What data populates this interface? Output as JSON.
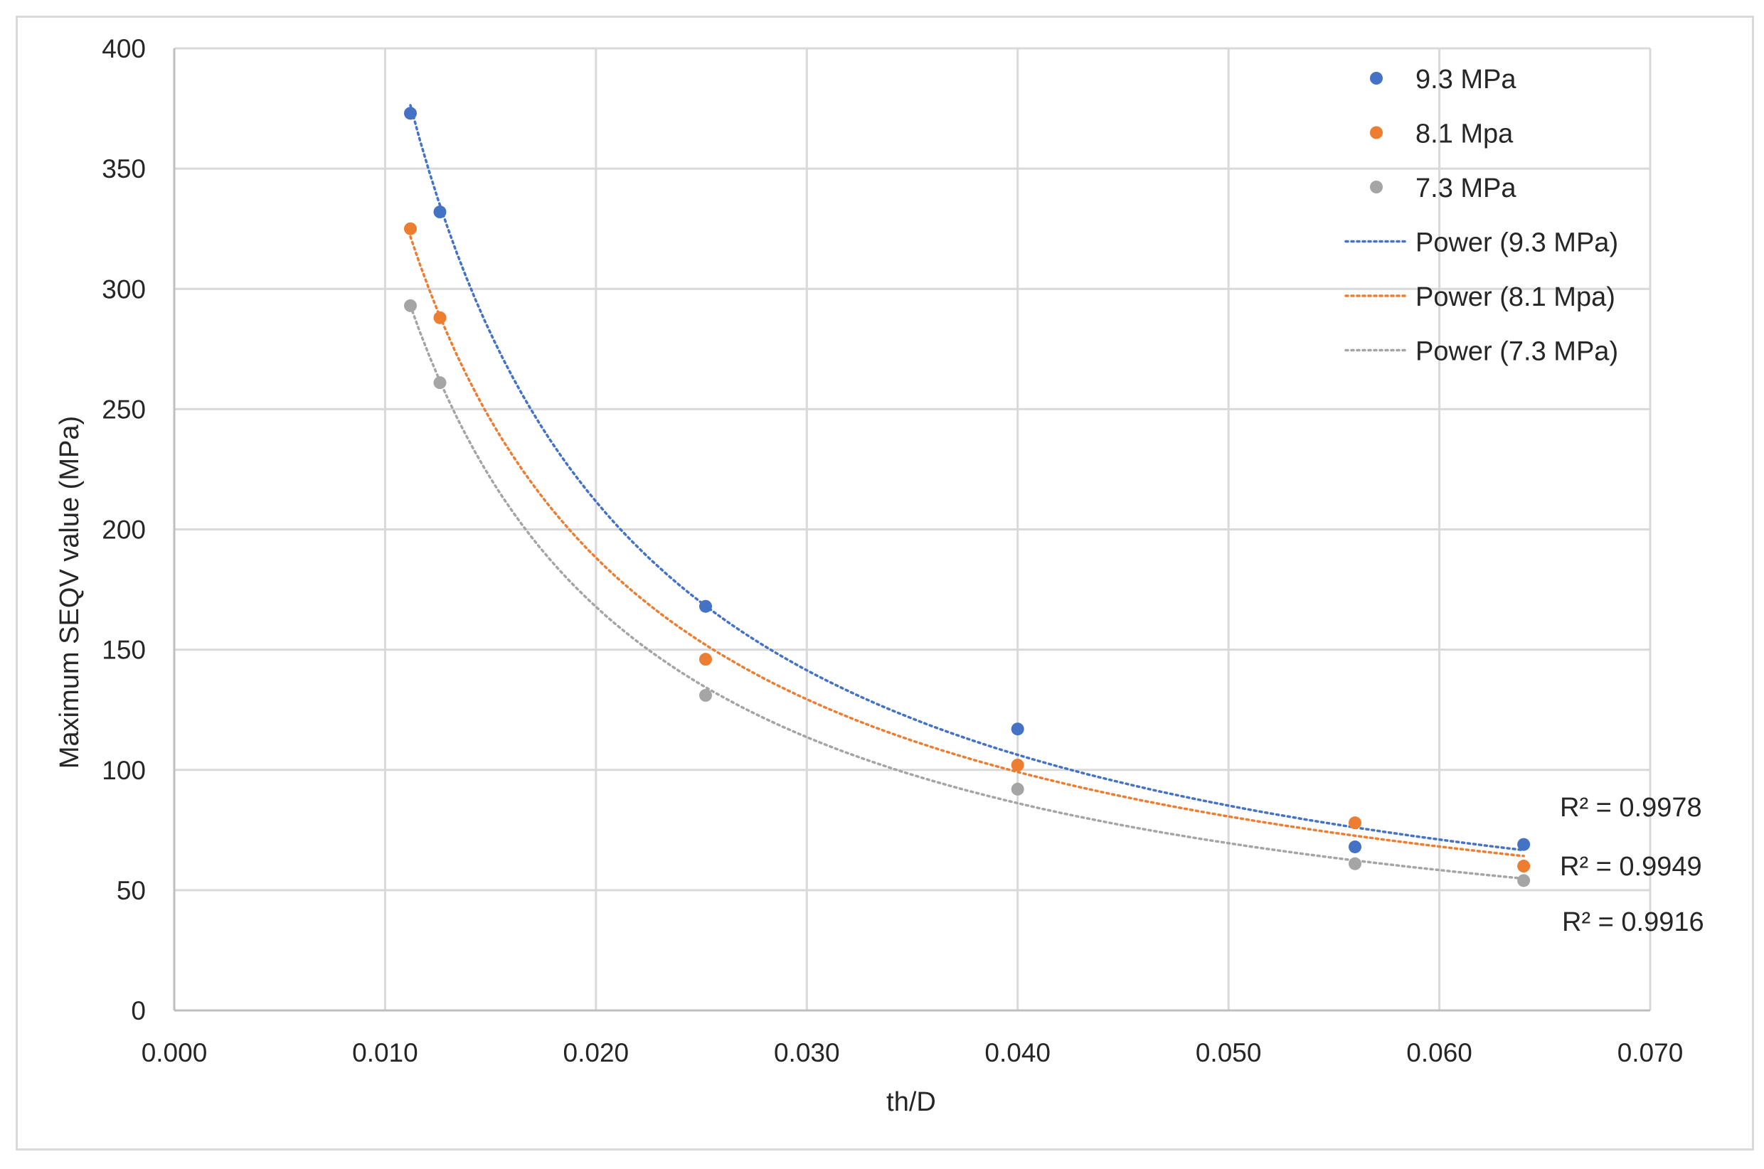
{
  "chart_data": {
    "type": "scatter",
    "title": "",
    "xlabel": "th/D",
    "ylabel": "Maximum SEQV value (MPa)",
    "xlim": [
      0,
      0.07
    ],
    "ylim": [
      0,
      400
    ],
    "x_ticks": [
      "0.000",
      "0.010",
      "0.020",
      "0.030",
      "0.040",
      "0.050",
      "0.060",
      "0.070"
    ],
    "y_ticks": [
      "0",
      "50",
      "100",
      "150",
      "200",
      "250",
      "300",
      "350",
      "400"
    ],
    "grid": true,
    "legend_position": "top-right",
    "series": [
      {
        "name": "9.3 MPa",
        "color": "#4472c4",
        "x": [
          0.0112,
          0.0126,
          0.0252,
          0.04,
          0.056,
          0.064
        ],
        "y": [
          373,
          332,
          168,
          117,
          68,
          69
        ],
        "trendline": {
          "name": "Power (9.3 MPa)",
          "r2": "R² = 0.9978"
        }
      },
      {
        "name": "8.1 Mpa",
        "color": "#ed7d31",
        "x": [
          0.0112,
          0.0126,
          0.0252,
          0.04,
          0.056,
          0.064
        ],
        "y": [
          325,
          288,
          146,
          102,
          78,
          60
        ],
        "trendline": {
          "name": "Power (8.1 Mpa)",
          "r2": "R² = 0.9949"
        }
      },
      {
        "name": "7.3 MPa",
        "color": "#a5a5a5",
        "x": [
          0.0112,
          0.0126,
          0.0252,
          0.04,
          0.056,
          0.064
        ],
        "y": [
          293,
          261,
          131,
          92,
          61,
          54
        ],
        "trendline": {
          "name": "Power (7.3 MPa)",
          "r2": "R² = 0.9916"
        }
      }
    ]
  }
}
